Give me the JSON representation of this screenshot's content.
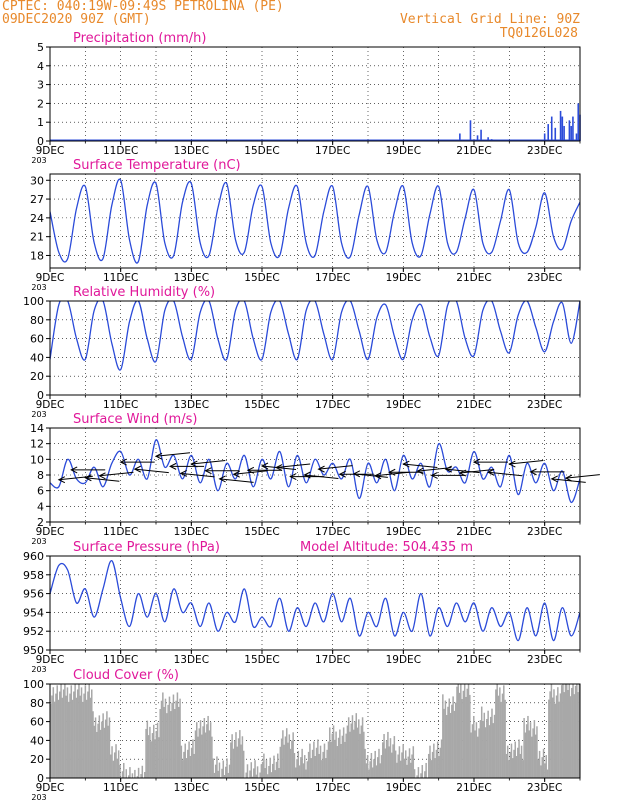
{
  "header": {
    "line1": "CPTEC:   040:19W-09:49S   PETROLINA (PE)",
    "line2": "09DEC2020 90Z (GMT)",
    "grid_note": "Vertical Grid Line: 90Z",
    "code": "TQ0126L028"
  },
  "colors": {
    "series": "#2b4bd9",
    "title": "#e0189a",
    "header": "#e8892b",
    "cloud": "#a8a8a8",
    "arrow": "#000000"
  },
  "x_ticks": [
    "9DEC",
    "11DEC",
    "13DEC",
    "15DEC",
    "17DEC",
    "19DEC",
    "21DEC",
    "23DEC"
  ],
  "x_sub": "203",
  "chart_data": [
    {
      "id": "precip",
      "type": "bar",
      "title": "Precipitation (mm/h)",
      "ylim": [
        0,
        5
      ],
      "yticks": [
        0,
        1,
        2,
        3,
        4,
        5
      ],
      "time_range_days": [
        0,
        15
      ],
      "points": [
        [
          0.2,
          0.03
        ],
        [
          1.0,
          0.02
        ],
        [
          2.2,
          0.02
        ],
        [
          7.6,
          0.05
        ],
        [
          8.4,
          0.03
        ],
        [
          11.4,
          0.05
        ],
        [
          11.6,
          0.4
        ],
        [
          11.9,
          1.1
        ],
        [
          12.1,
          0.3
        ],
        [
          12.2,
          0.6
        ],
        [
          12.4,
          0.2
        ],
        [
          12.5,
          0.1
        ],
        [
          14.0,
          0.4
        ],
        [
          14.1,
          0.9
        ],
        [
          14.2,
          1.3
        ],
        [
          14.3,
          0.7
        ],
        [
          14.45,
          1.6
        ],
        [
          14.5,
          1.3
        ],
        [
          14.55,
          0.8
        ],
        [
          14.7,
          1.1
        ],
        [
          14.75,
          0.8
        ],
        [
          14.8,
          1.3
        ],
        [
          14.9,
          0.4
        ],
        [
          14.95,
          2.0
        ],
        [
          15.0,
          1.4
        ]
      ]
    },
    {
      "id": "temp",
      "type": "line",
      "title": "Surface Temperature (nC)",
      "ylim": [
        16,
        31
      ],
      "yticks": [
        18,
        21,
        24,
        27,
        30
      ],
      "time_range_days": [
        0,
        15
      ],
      "x": [
        0.0,
        0.25,
        0.5,
        0.75,
        1.0,
        1.25,
        1.5,
        1.75,
        2.0,
        2.25,
        2.5,
        2.75,
        3.0,
        3.25,
        3.5,
        3.75,
        4.0,
        4.25,
        4.5,
        4.75,
        5.0,
        5.25,
        5.5,
        5.75,
        6.0,
        6.25,
        6.5,
        6.75,
        7.0,
        7.25,
        7.5,
        7.75,
        8.0,
        8.25,
        8.5,
        8.75,
        9.0,
        9.25,
        9.5,
        9.75,
        10.0,
        10.25,
        10.5,
        10.75,
        11.0,
        11.25,
        11.5,
        11.75,
        12.0,
        12.25,
        12.5,
        12.75,
        13.0,
        13.25,
        13.5,
        13.75,
        14.0,
        14.25,
        14.5,
        14.75,
        15.0
      ],
      "y": [
        25.0,
        18.5,
        17.5,
        25.5,
        29.0,
        20.0,
        17.5,
        26.0,
        30.0,
        20.5,
        17.0,
        26.0,
        29.5,
        20.0,
        18.0,
        26.5,
        29.5,
        20.0,
        18.0,
        25.5,
        29.5,
        20.5,
        18.5,
        26.0,
        29.0,
        20.0,
        18.0,
        25.5,
        29.0,
        20.0,
        18.0,
        25.0,
        29.0,
        20.0,
        17.8,
        24.5,
        29.0,
        20.5,
        18.5,
        25.0,
        29.0,
        20.0,
        18.0,
        24.5,
        29.0,
        20.0,
        18.5,
        24.0,
        28.5,
        20.0,
        18.5,
        23.5,
        28.5,
        20.0,
        18.5,
        22.5,
        28.0,
        21.0,
        19.0,
        23.5,
        26.5
      ]
    },
    {
      "id": "rh",
      "type": "line",
      "title": "Relative Humidity (%)",
      "ylim": [
        0,
        100
      ],
      "yticks": [
        0,
        20,
        40,
        60,
        80,
        100
      ],
      "time_range_days": [
        0,
        15
      ],
      "x": [
        0.0,
        0.25,
        0.5,
        0.75,
        1.0,
        1.25,
        1.5,
        1.75,
        2.0,
        2.25,
        2.5,
        2.75,
        3.0,
        3.25,
        3.5,
        3.75,
        4.0,
        4.25,
        4.5,
        4.75,
        5.0,
        5.25,
        5.5,
        5.75,
        6.0,
        6.25,
        6.5,
        6.75,
        7.0,
        7.25,
        7.5,
        7.75,
        8.0,
        8.25,
        8.5,
        8.75,
        9.0,
        9.25,
        9.5,
        9.75,
        10.0,
        10.25,
        10.5,
        10.75,
        11.0,
        11.25,
        11.5,
        11.75,
        12.0,
        12.25,
        12.5,
        12.75,
        13.0,
        13.25,
        13.5,
        13.75,
        14.0,
        14.25,
        14.5,
        14.75,
        15.0
      ],
      "y": [
        38,
        96,
        100,
        60,
        38,
        90,
        100,
        55,
        27,
        78,
        100,
        60,
        36,
        90,
        100,
        62,
        38,
        88,
        100,
        60,
        38,
        90,
        100,
        60,
        38,
        88,
        100,
        65,
        38,
        90,
        100,
        65,
        38,
        88,
        100,
        68,
        38,
        82,
        96,
        62,
        38,
        80,
        96,
        62,
        42,
        95,
        100,
        60,
        42,
        90,
        100,
        68,
        45,
        85,
        100,
        72,
        46,
        78,
        98,
        55,
        100
      ]
    },
    {
      "id": "wind",
      "type": "line",
      "title": "Surface Wind (m/s)",
      "ylim": [
        2,
        14
      ],
      "yticks": [
        2,
        4,
        6,
        8,
        10,
        12,
        14
      ],
      "time_range_days": [
        0,
        15
      ],
      "x": [
        0.0,
        0.25,
        0.5,
        0.75,
        1.0,
        1.25,
        1.5,
        1.75,
        2.0,
        2.25,
        2.5,
        2.75,
        3.0,
        3.25,
        3.5,
        3.75,
        4.0,
        4.25,
        4.5,
        4.75,
        5.0,
        5.25,
        5.5,
        5.75,
        6.0,
        6.25,
        6.5,
        6.75,
        7.0,
        7.25,
        7.5,
        7.75,
        8.0,
        8.25,
        8.5,
        8.75,
        9.0,
        9.25,
        9.5,
        9.75,
        10.0,
        10.25,
        10.5,
        10.75,
        11.0,
        11.25,
        11.5,
        11.75,
        12.0,
        12.25,
        12.5,
        12.75,
        13.0,
        13.25,
        13.5,
        13.75,
        14.0,
        14.25,
        14.5,
        14.75,
        15.0
      ],
      "y": [
        7.0,
        6.5,
        10.0,
        7.5,
        7.0,
        9.0,
        6.5,
        9.5,
        11.0,
        8.0,
        10.0,
        7.5,
        12.5,
        9.0,
        10.5,
        7.5,
        10.5,
        7.0,
        10.0,
        6.0,
        9.5,
        7.5,
        10.5,
        6.5,
        10.0,
        7.5,
        11.0,
        6.5,
        10.5,
        7.0,
        10.0,
        8.0,
        9.5,
        7.5,
        10.0,
        5.0,
        9.5,
        7.0,
        10.0,
        6.0,
        10.5,
        7.5,
        9.5,
        6.5,
        12.0,
        8.5,
        9.0,
        7.0,
        11.0,
        7.5,
        9.0,
        6.5,
        10.5,
        5.5,
        9.5,
        7.0,
        9.5,
        6.0,
        8.5,
        4.5,
        7.5
      ],
      "arrows": [
        [
          0.25,
          0
        ],
        [
          0.6,
          0
        ],
        [
          1.0,
          0
        ],
        [
          1.4,
          0
        ],
        [
          2.0,
          0
        ],
        [
          2.4,
          0
        ],
        [
          3.0,
          0
        ],
        [
          3.4,
          0
        ],
        [
          3.7,
          0
        ],
        [
          4.0,
          0
        ],
        [
          4.4,
          0
        ],
        [
          4.8,
          0
        ],
        [
          5.2,
          0
        ],
        [
          5.6,
          0
        ],
        [
          6.0,
          0
        ],
        [
          6.4,
          0
        ],
        [
          6.8,
          0
        ],
        [
          7.2,
          0
        ],
        [
          7.6,
          0
        ],
        [
          8.2,
          0
        ],
        [
          8.6,
          0
        ],
        [
          9.2,
          0
        ],
        [
          9.6,
          0
        ],
        [
          10.0,
          0
        ],
        [
          10.4,
          0
        ],
        [
          10.8,
          0
        ],
        [
          11.2,
          0
        ],
        [
          11.6,
          0
        ],
        [
          12.0,
          0
        ],
        [
          12.4,
          0
        ],
        [
          13.0,
          0
        ],
        [
          13.6,
          0
        ],
        [
          14.2,
          0
        ],
        [
          14.6,
          0
        ]
      ]
    },
    {
      "id": "pres",
      "type": "line",
      "title": "Surface Pressure (hPa)",
      "ylim": [
        950,
        960
      ],
      "yticks": [
        950,
        952,
        954,
        956,
        958,
        960
      ],
      "time_range_days": [
        0,
        15
      ],
      "annotation": "Model Altitude: 504.435 m",
      "x": [
        0.0,
        0.25,
        0.5,
        0.75,
        1.0,
        1.25,
        1.5,
        1.75,
        2.0,
        2.25,
        2.5,
        2.75,
        3.0,
        3.25,
        3.5,
        3.75,
        4.0,
        4.25,
        4.5,
        4.75,
        5.0,
        5.25,
        5.5,
        5.75,
        6.0,
        6.25,
        6.5,
        6.75,
        7.0,
        7.25,
        7.5,
        7.75,
        8.0,
        8.25,
        8.5,
        8.75,
        9.0,
        9.25,
        9.5,
        9.75,
        10.0,
        10.25,
        10.5,
        10.75,
        11.0,
        11.25,
        11.5,
        11.75,
        12.0,
        12.25,
        12.5,
        12.75,
        13.0,
        13.25,
        13.5,
        13.75,
        14.0,
        14.25,
        14.5,
        14.75,
        15.0
      ],
      "y": [
        956.0,
        959.0,
        958.5,
        955.0,
        956.5,
        953.5,
        956.5,
        959.5,
        955.5,
        952.5,
        956.0,
        953.5,
        956.0,
        953.0,
        956.5,
        954.0,
        955.0,
        952.5,
        955.0,
        952.0,
        954.0,
        953.0,
        956.5,
        952.5,
        953.5,
        952.5,
        955.5,
        952.0,
        954.5,
        952.5,
        955.0,
        953.0,
        956.0,
        953.0,
        955.5,
        951.5,
        954.0,
        952.5,
        955.5,
        951.5,
        954.0,
        952.0,
        956.0,
        951.5,
        954.5,
        952.5,
        955.0,
        953.0,
        955.0,
        952.0,
        954.5,
        952.5,
        954.0,
        951.0,
        954.5,
        951.5,
        955.0,
        951.0,
        954.5,
        951.5,
        954.0
      ]
    },
    {
      "id": "cloud",
      "type": "bar",
      "title": "Cloud Cover (%)",
      "ylim": [
        0,
        100
      ],
      "yticks": [
        0,
        20,
        40,
        60,
        80,
        100
      ],
      "time_range_days": [
        0,
        15
      ],
      "segments": [
        [
          0.0,
          0.15,
          90
        ],
        [
          0.15,
          1.2,
          92
        ],
        [
          1.2,
          1.7,
          60
        ],
        [
          1.7,
          2.0,
          25
        ],
        [
          2.0,
          2.35,
          5
        ],
        [
          2.35,
          2.7,
          2
        ],
        [
          2.7,
          3.1,
          50
        ],
        [
          3.1,
          3.7,
          80
        ],
        [
          3.7,
          4.1,
          30
        ],
        [
          4.1,
          4.6,
          55
        ],
        [
          4.6,
          5.1,
          12
        ],
        [
          5.1,
          5.5,
          40
        ],
        [
          5.5,
          6.0,
          8
        ],
        [
          6.0,
          6.5,
          15
        ],
        [
          6.5,
          6.9,
          42
        ],
        [
          6.9,
          7.3,
          20
        ],
        [
          7.3,
          7.9,
          30
        ],
        [
          7.9,
          8.4,
          45
        ],
        [
          8.4,
          8.9,
          58
        ],
        [
          8.9,
          9.4,
          20
        ],
        [
          9.4,
          9.8,
          38
        ],
        [
          9.8,
          10.3,
          25
        ],
        [
          10.3,
          10.7,
          5
        ],
        [
          10.7,
          11.1,
          30
        ],
        [
          11.1,
          11.5,
          78
        ],
        [
          11.5,
          11.9,
          95
        ],
        [
          11.9,
          12.2,
          55
        ],
        [
          12.2,
          12.6,
          65
        ],
        [
          12.6,
          12.9,
          92
        ],
        [
          12.9,
          13.4,
          30
        ],
        [
          13.4,
          13.8,
          55
        ],
        [
          13.8,
          14.1,
          20
        ],
        [
          14.1,
          14.5,
          90
        ],
        [
          14.5,
          15.0,
          98
        ]
      ]
    }
  ]
}
